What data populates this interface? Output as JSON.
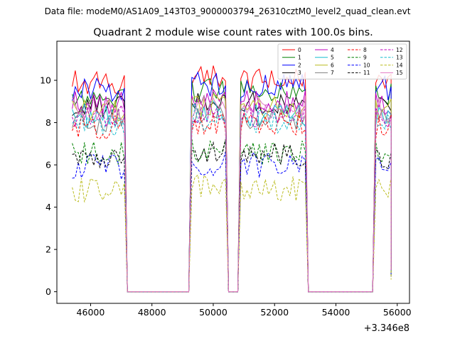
{
  "figure": {
    "suptitle": "Data file: modeM0/AS1A09_143T03_9000003794_26310cztM0_level2_quad_clean.evt",
    "title": "Quadrant 2 module wise count rates with 100.0s bins.",
    "offset_text": "+3.346e8"
  },
  "chart_data": {
    "type": "line",
    "title": "Quadrant 2 module wise count rates with 100.0s bins.",
    "x_offset": 334600000,
    "bin_width_s": 100,
    "xlim": [
      44900,
      56400
    ],
    "ylim": [
      -0.55,
      11.85
    ],
    "x_ticks": [
      46000,
      48000,
      50000,
      52000,
      54000,
      56000
    ],
    "x_tick_labels": [
      "46000",
      "48000",
      "50000",
      "52000",
      "54000",
      "56000"
    ],
    "y_ticks": [
      0,
      2,
      4,
      6,
      8,
      10
    ],
    "y_tick_labels": [
      "0",
      "2",
      "4",
      "6",
      "8",
      "10"
    ],
    "grid": false,
    "legend_position": "top-right",
    "legend_columns": 4,
    "segments": [
      {
        "x_start": 45400,
        "x_end": 47100
      },
      {
        "x_start": 49300,
        "x_end": 50400
      },
      {
        "x_start": 50900,
        "x_end": 53000
      },
      {
        "x_start": 55300,
        "x_end": 55800
      }
    ],
    "gaps": [
      [
        47200,
        49200
      ],
      [
        50500,
        50800
      ],
      [
        53100,
        55200
      ]
    ],
    "gap_value": 0,
    "series": [
      {
        "name": "0",
        "color": "#ff0000",
        "dash": "solid",
        "level": 9.9
      },
      {
        "name": "1",
        "color": "#008000",
        "dash": "solid",
        "level": 9.3
      },
      {
        "name": "2",
        "color": "#0000ff",
        "dash": "solid",
        "level": 9.6
      },
      {
        "name": "3",
        "color": "#000000",
        "dash": "solid",
        "level": 8.8
      },
      {
        "name": "4",
        "color": "#bf00bf",
        "dash": "solid",
        "level": 8.9
      },
      {
        "name": "5",
        "color": "#17becf",
        "dash": "solid",
        "level": 8.3
      },
      {
        "name": "6",
        "color": "#bcbd22",
        "dash": "solid",
        "level": 8.6
      },
      {
        "name": "7",
        "color": "#7f7f7f",
        "dash": "solid",
        "level": 8.1
      },
      {
        "name": "8",
        "color": "#ff0000",
        "dash": "dashed",
        "level": 7.8
      },
      {
        "name": "9",
        "color": "#008000",
        "dash": "dashed",
        "level": 6.5
      },
      {
        "name": "10",
        "color": "#0000ff",
        "dash": "dashed",
        "level": 5.9
      },
      {
        "name": "11",
        "color": "#000000",
        "dash": "dashed",
        "level": 6.4
      },
      {
        "name": "12",
        "color": "#bf00bf",
        "dash": "dashed",
        "level": 8.3
      },
      {
        "name": "13",
        "color": "#17becf",
        "dash": "dashed",
        "level": 8.0
      },
      {
        "name": "14",
        "color": "#bcbd22",
        "dash": "dashed",
        "level": 4.8
      },
      {
        "name": "15",
        "color": "#e377c2",
        "dash": "solid",
        "level": 8.6
      }
    ]
  }
}
